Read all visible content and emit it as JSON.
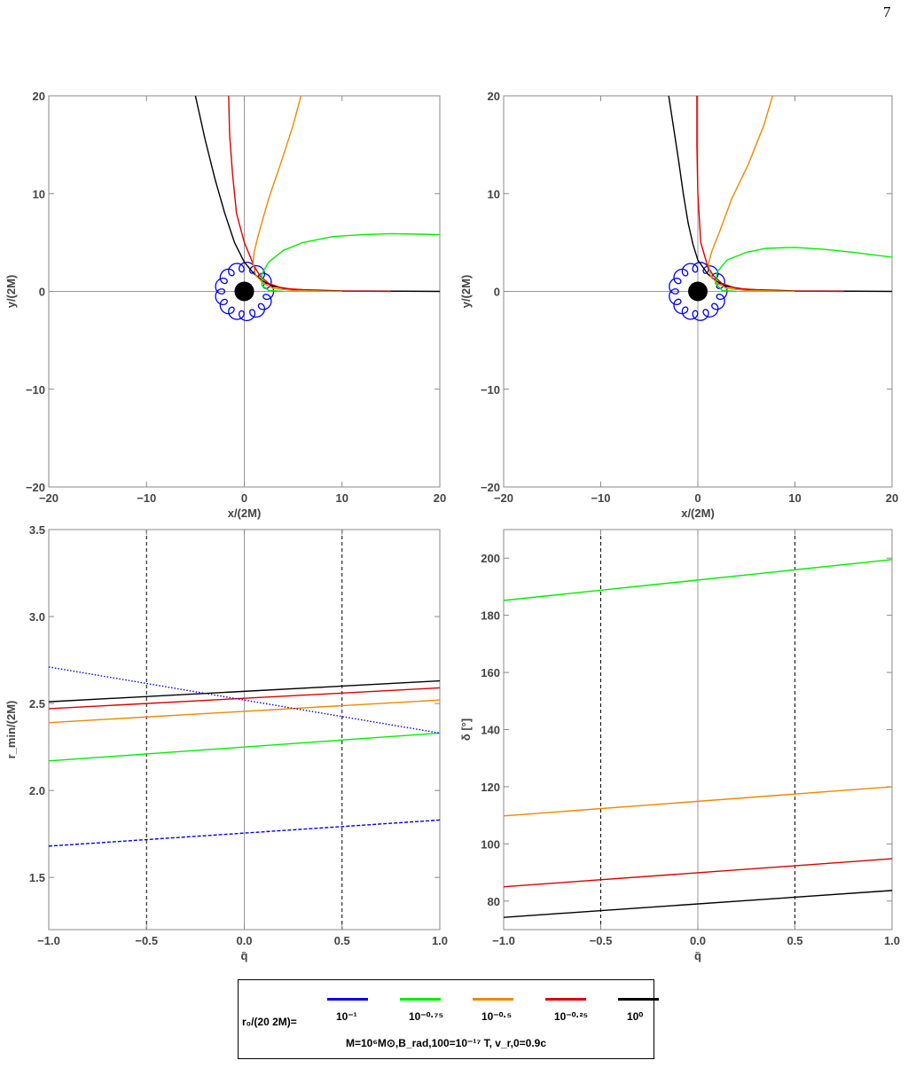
{
  "page_number": "7",
  "colors": {
    "blue": "#0000ee",
    "green": "#00ee00",
    "orange": "#ee8800",
    "red": "#dd0000",
    "black": "#000000"
  },
  "legend": {
    "prefix": "r₀/(20 2M)=",
    "entries": [
      {
        "label": "10⁻¹",
        "color": "#0000ee"
      },
      {
        "label": "10⁻⁰·⁷⁵",
        "color": "#00ee00"
      },
      {
        "label": "10⁻⁰·⁵",
        "color": "#ee8800"
      },
      {
        "label": "10⁻⁰·²⁵",
        "color": "#dd0000"
      },
      {
        "label": "10⁰",
        "color": "#000000"
      }
    ],
    "params": "M=10⁶M⊙,B_rad,100=10⁻¹⁷ T,  v_r,0=0.9c"
  },
  "chart_data": [
    {
      "type": "line",
      "panel": "top-left",
      "xlabel": "x/(2M)",
      "ylabel": "y/(2M)",
      "xlim": [
        -20,
        20
      ],
      "ylim": [
        -20,
        20
      ],
      "xticks": [
        "−20",
        "−10",
        "0",
        "10",
        "20"
      ],
      "yticks": [
        "−20",
        "−10",
        "0",
        "10",
        "20"
      ],
      "series": [
        {
          "color": "#000000",
          "x": [
            20,
            10,
            5,
            3,
            2,
            1,
            0,
            -1,
            -2,
            -3,
            -4,
            -5
          ],
          "y": [
            0,
            0.05,
            0.2,
            0.5,
            1.0,
            1.8,
            3.0,
            5.0,
            8.0,
            11.5,
            15.5,
            20
          ]
        },
        {
          "color": "#dd0000",
          "x": [
            15,
            8,
            4,
            2.5,
            1.6,
            1.0,
            0,
            -0.8,
            -1.2,
            -1.5,
            -1.6
          ],
          "y": [
            0,
            0.05,
            0.3,
            0.8,
            1.6,
            2.6,
            5.0,
            8.0,
            12.0,
            16.0,
            20
          ]
        },
        {
          "color": "#ee8800",
          "x": [
            10,
            5,
            3,
            2,
            1.2,
            0.9,
            1.0,
            1.5,
            2.5,
            3.7,
            5.0,
            5.8
          ],
          "y": [
            0,
            0.1,
            0.3,
            0.8,
            1.6,
            2.8,
            4.0,
            6.0,
            9.5,
            13.0,
            17.0,
            20
          ]
        },
        {
          "color": "#00ee00",
          "x": [
            4,
            2.5,
            1.8,
            1.8,
            2.5,
            4.0,
            6.0,
            9.0,
            12.0,
            15.0,
            18.0,
            20.0
          ],
          "y": [
            0,
            0.1,
            0.6,
            1.8,
            3.0,
            4.2,
            5.0,
            5.6,
            5.8,
            5.9,
            5.85,
            5.8
          ]
        }
      ],
      "blue_ring_radius": 2.5,
      "black_hole_radius": 1
    },
    {
      "type": "line",
      "panel": "top-right",
      "xlabel": "x/(2M)",
      "ylabel": "y/(2M)",
      "xlim": [
        -20,
        20
      ],
      "ylim": [
        -20,
        20
      ],
      "xticks": [
        "−20",
        "−10",
        "0",
        "10",
        "20"
      ],
      "yticks": [
        "−20",
        "−10",
        "0",
        "10",
        "20"
      ],
      "series": [
        {
          "color": "#000000",
          "x": [
            20,
            10,
            5,
            3,
            2,
            1,
            0,
            -0.5,
            -1,
            -1.5,
            -2,
            -3.0
          ],
          "y": [
            0,
            0.05,
            0.2,
            0.5,
            1.0,
            1.8,
            3.2,
            4.8,
            7.0,
            10.0,
            13.5,
            20
          ]
        },
        {
          "color": "#dd0000",
          "x": [
            15,
            8,
            4,
            2.5,
            1.6,
            1.0,
            0.3,
            0.0,
            -0.1,
            -0.1
          ],
          "y": [
            0,
            0.05,
            0.3,
            0.8,
            1.6,
            2.6,
            5.0,
            10.0,
            15.0,
            20
          ]
        },
        {
          "color": "#ee8800",
          "x": [
            10,
            5,
            3,
            2,
            1.3,
            1.1,
            1.4,
            2.2,
            3.5,
            5.2,
            6.8,
            7.7
          ],
          "y": [
            0,
            0.1,
            0.3,
            0.8,
            1.6,
            2.8,
            4.0,
            6.0,
            9.5,
            13.0,
            17.0,
            20
          ]
        },
        {
          "color": "#00ee00",
          "x": [
            4,
            2.5,
            1.8,
            2.0,
            3.0,
            5.0,
            7.0,
            10.0,
            13.0,
            16.0,
            20.0
          ],
          "y": [
            0,
            0.1,
            0.8,
            2.0,
            3.2,
            4.0,
            4.4,
            4.5,
            4.3,
            4.0,
            3.5
          ]
        }
      ],
      "blue_ring_radius": 2.5,
      "black_hole_radius": 1
    },
    {
      "type": "line",
      "panel": "bottom-left",
      "xlabel": "q̃",
      "ylabel": "r_min/(2M)",
      "xlim": [
        -1.0,
        1.0
      ],
      "ylim": [
        1.2,
        3.5
      ],
      "xticks": [
        "−1.0",
        "−0.5",
        "0.0",
        "0.5",
        "1.0"
      ],
      "yticks": [
        "1.5",
        "2.0",
        "2.5",
        "3.0",
        "3.5"
      ],
      "vlines": [
        -0.5,
        0.5
      ],
      "series": [
        {
          "color": "#000000",
          "style": "solid",
          "x": [
            -1.0,
            1.0
          ],
          "y": [
            2.51,
            2.63
          ]
        },
        {
          "color": "#dd0000",
          "style": "solid",
          "x": [
            -1.0,
            1.0
          ],
          "y": [
            2.47,
            2.59
          ]
        },
        {
          "color": "#ee8800",
          "style": "solid",
          "x": [
            -1.0,
            1.0
          ],
          "y": [
            2.39,
            2.52
          ]
        },
        {
          "color": "#00ee00",
          "style": "solid",
          "x": [
            -1.0,
            1.0
          ],
          "y": [
            2.17,
            2.33
          ]
        },
        {
          "color": "#0000ee",
          "style": "dotted",
          "x": [
            -1.0,
            1.0
          ],
          "y": [
            2.71,
            2.33
          ]
        },
        {
          "color": "#0000ee",
          "style": "dashed",
          "x": [
            -1.0,
            1.0
          ],
          "y": [
            1.68,
            1.83
          ]
        }
      ]
    },
    {
      "type": "line",
      "panel": "bottom-right",
      "xlabel": "q̃",
      "ylabel": "δ [°]",
      "xlim": [
        -1.0,
        1.0
      ],
      "ylim": [
        70,
        210
      ],
      "xticks": [
        "−1.0",
        "−0.5",
        "0.0",
        "0.5",
        "1.0"
      ],
      "yticks": [
        "80",
        "100",
        "120",
        "140",
        "160",
        "180",
        "200"
      ],
      "vlines": [
        -0.5,
        0.5
      ],
      "series": [
        {
          "color": "#00ee00",
          "style": "solid",
          "x": [
            -1.0,
            1.0
          ],
          "y": [
            185.2,
            199.5
          ]
        },
        {
          "color": "#ee8800",
          "style": "solid",
          "x": [
            -1.0,
            1.0
          ],
          "y": [
            109.8,
            120.0
          ]
        },
        {
          "color": "#dd0000",
          "style": "solid",
          "x": [
            -1.0,
            1.0
          ],
          "y": [
            85.0,
            94.8
          ]
        },
        {
          "color": "#000000",
          "style": "solid",
          "x": [
            -1.0,
            1.0
          ],
          "y": [
            74.3,
            83.7
          ]
        }
      ]
    }
  ]
}
